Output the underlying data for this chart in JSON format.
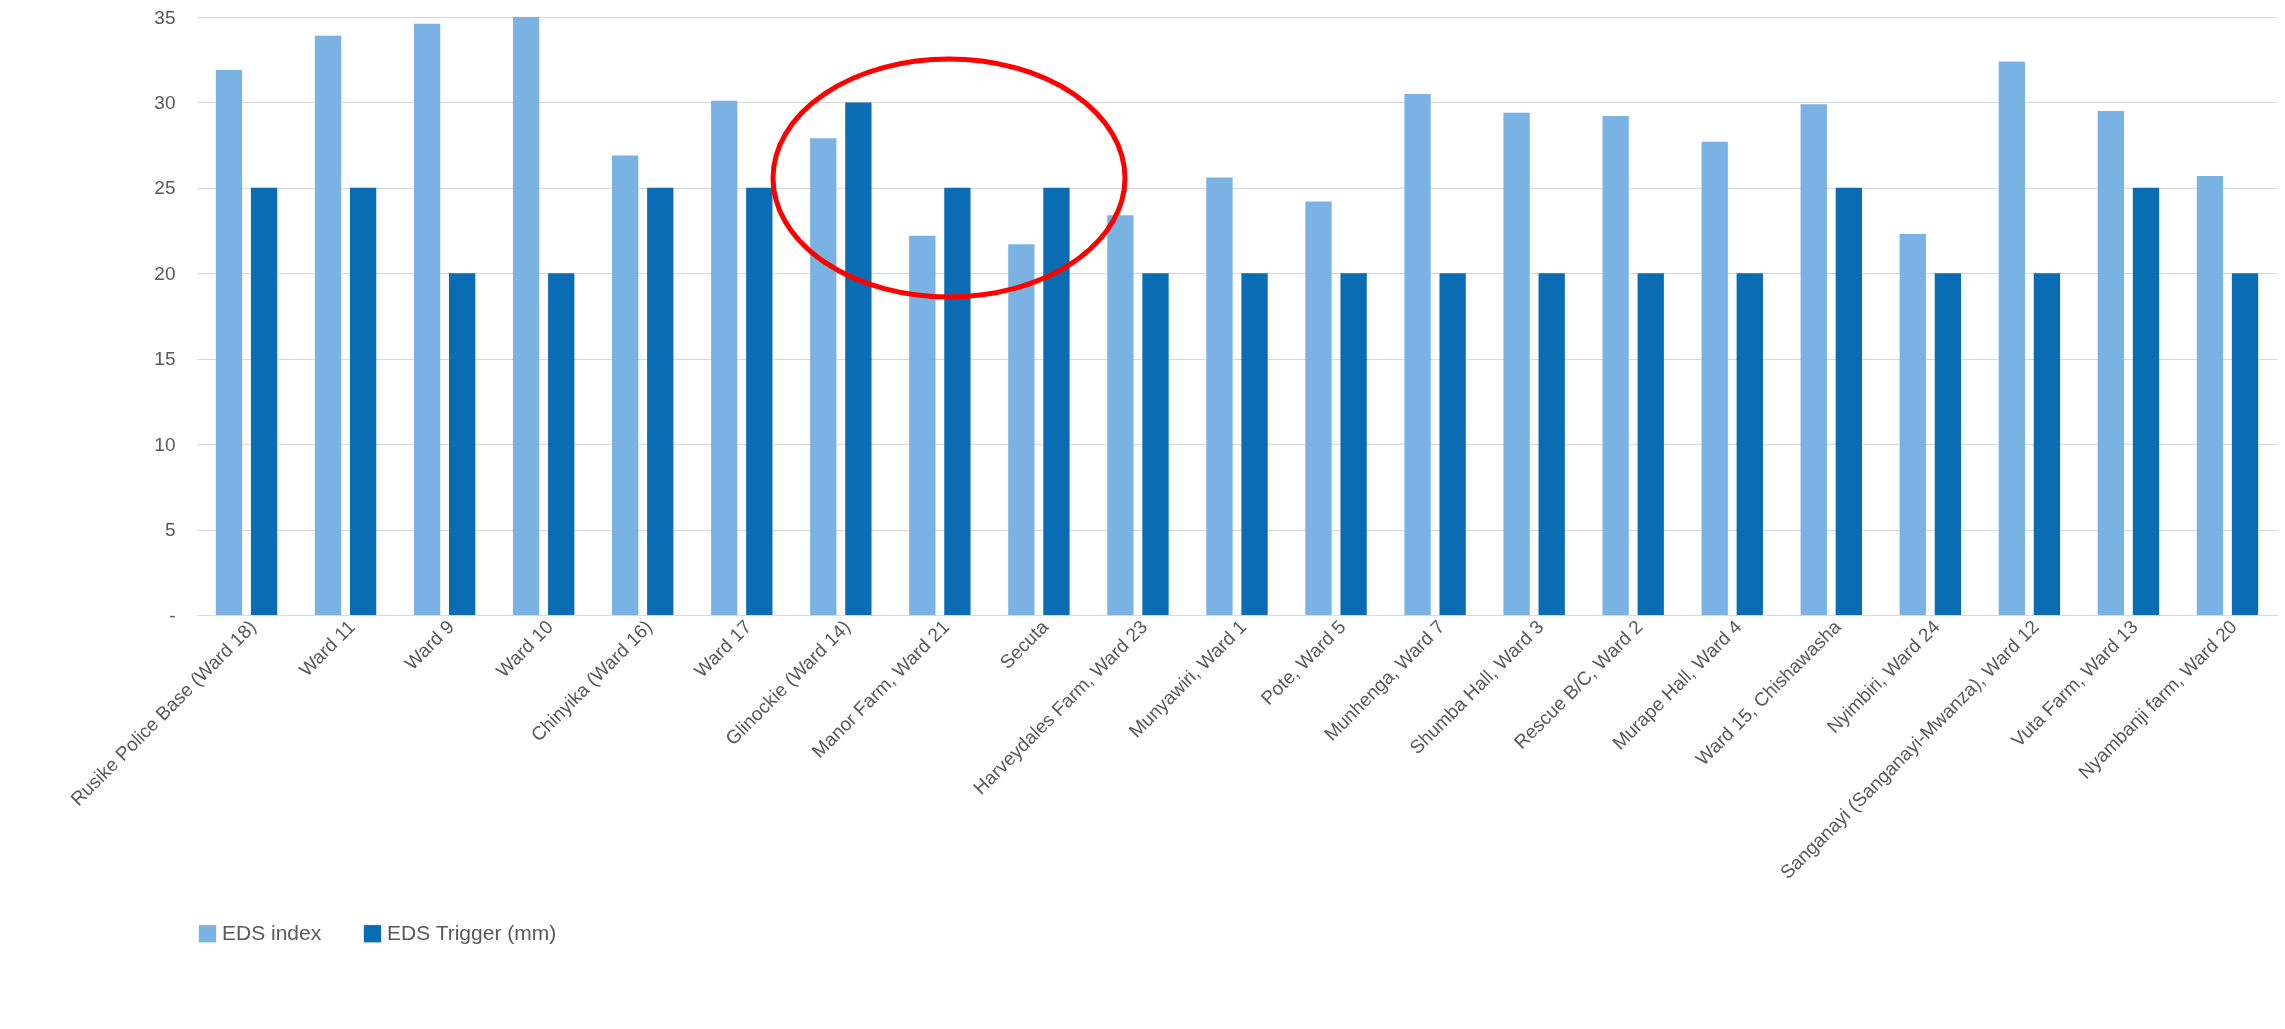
{
  "chart_data": {
    "type": "bar",
    "categories": [
      "Rusike Police Base (Ward 18)",
      "Ward 11",
      "Ward 9",
      "Ward 10",
      "Chinyika (Ward 16)",
      "Ward 17",
      "Glinockie (Ward 14)",
      "Manor Farm, Ward 21",
      "Secuta",
      "Harveydales Farm, Ward 23",
      "Munyawiri, Ward 1",
      "Pote, Ward 5",
      "Munhenga, Ward 7",
      "Shumba Hall, Ward 3",
      "Rescue B/C, Ward 2",
      "Murape Hall, Ward 4",
      "Ward 15, Chishawasha",
      "Nyimbiri, Ward 24",
      "Sanganayi (Sanganayi-Mwanza), Ward 12",
      "Vuta Farm, Ward 13",
      "Nyambanji farm, Ward 20"
    ],
    "series": [
      {
        "name": "EDS index",
        "color": "#7ab3e3",
        "values": [
          31.9,
          33.9,
          34.6,
          35,
          26.9,
          30.1,
          27.9,
          22.2,
          21.7,
          23.4,
          25.6,
          24.2,
          30.5,
          29.4,
          29.2,
          27.7,
          29.9,
          22.3,
          32.4,
          29.5,
          25.7
        ]
      },
      {
        "name": "EDS Trigger (mm)",
        "color": "#0a6db4",
        "values": [
          25,
          25,
          20,
          20,
          25,
          25,
          30,
          25,
          25,
          20,
          20,
          20,
          20,
          20,
          20,
          20,
          25,
          20,
          20,
          25,
          20
        ]
      }
    ],
    "ylim": [
      0,
      35
    ],
    "yticks": [
      {
        "value": 0,
        "label": "-"
      },
      5,
      10,
      15,
      20,
      25,
      30,
      35
    ],
    "grid": "y",
    "legend": "bottom"
  }
}
